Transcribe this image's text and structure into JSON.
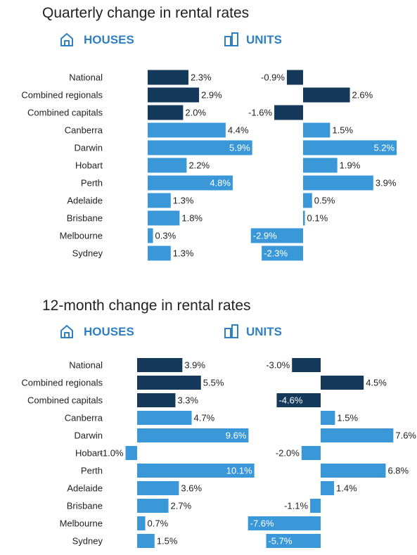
{
  "colors": {
    "dark": "#15395a",
    "light": "#3a98d8",
    "accent": "#2f7fc4",
    "text": "#222222"
  },
  "chart_data": [
    {
      "type": "bar",
      "title": "Quarterly change in rental rates",
      "categories": [
        "National",
        "Combined regionals",
        "Combined capitals",
        "Canberra",
        "Darwin",
        "Hobart",
        "Perth",
        "Adelaide",
        "Brisbane",
        "Melbourne",
        "Sydney"
      ],
      "panels": [
        {
          "name": "HOUSES",
          "icon": "house-icon",
          "values": [
            2.3,
            2.9,
            2.0,
            4.4,
            5.9,
            2.2,
            4.8,
            1.3,
            1.8,
            0.3,
            1.3
          ],
          "labels": [
            "2.3%",
            "2.9%",
            "2.0%",
            "4.4%",
            "5.9%",
            "2.2%",
            "4.8%",
            "1.3%",
            "1.8%",
            "0.3%",
            "1.3%"
          ]
        },
        {
          "name": "UNITS",
          "icon": "units-icon",
          "values": [
            -0.9,
            2.6,
            -1.6,
            1.5,
            5.2,
            1.9,
            3.9,
            0.5,
            0.1,
            -2.9,
            -2.3
          ],
          "labels": [
            "-0.9%",
            "2.6%",
            "-1.6%",
            "1.5%",
            "5.2%",
            "1.9%",
            "3.9%",
            "0.5%",
            "0.1%",
            "-2.9%",
            "-2.3%"
          ]
        }
      ],
      "highlighted": [
        "National",
        "Combined regionals",
        "Combined capitals"
      ]
    },
    {
      "type": "bar",
      "title": "12-month change in rental rates",
      "categories": [
        "National",
        "Combined regionals",
        "Combined capitals",
        "Canberra",
        "Darwin",
        "Hobart",
        "Perth",
        "Adelaide",
        "Brisbane",
        "Melbourne",
        "Sydney"
      ],
      "panels": [
        {
          "name": "HOUSES",
          "icon": "house-icon",
          "values": [
            3.9,
            5.5,
            3.3,
            4.7,
            9.6,
            -1.0,
            10.1,
            3.6,
            2.7,
            0.7,
            1.5
          ],
          "labels": [
            "3.9%",
            "5.5%",
            "3.3%",
            "4.7%",
            "9.6%",
            "-1.0%",
            "10.1%",
            "3.6%",
            "2.7%",
            "0.7%",
            "1.5%"
          ]
        },
        {
          "name": "UNITS",
          "icon": "units-icon",
          "values": [
            -3.0,
            4.5,
            -4.6,
            1.5,
            7.6,
            -2.0,
            6.8,
            1.4,
            -1.1,
            -7.6,
            -5.7
          ],
          "labels": [
            "-3.0%",
            "4.5%",
            "-4.6%",
            "1.5%",
            "7.6%",
            "-2.0%",
            "6.8%",
            "1.4%",
            "-1.1%",
            "-7.6%",
            "-5.7%"
          ]
        }
      ],
      "highlighted": [
        "National",
        "Combined regionals",
        "Combined capitals"
      ]
    }
  ]
}
